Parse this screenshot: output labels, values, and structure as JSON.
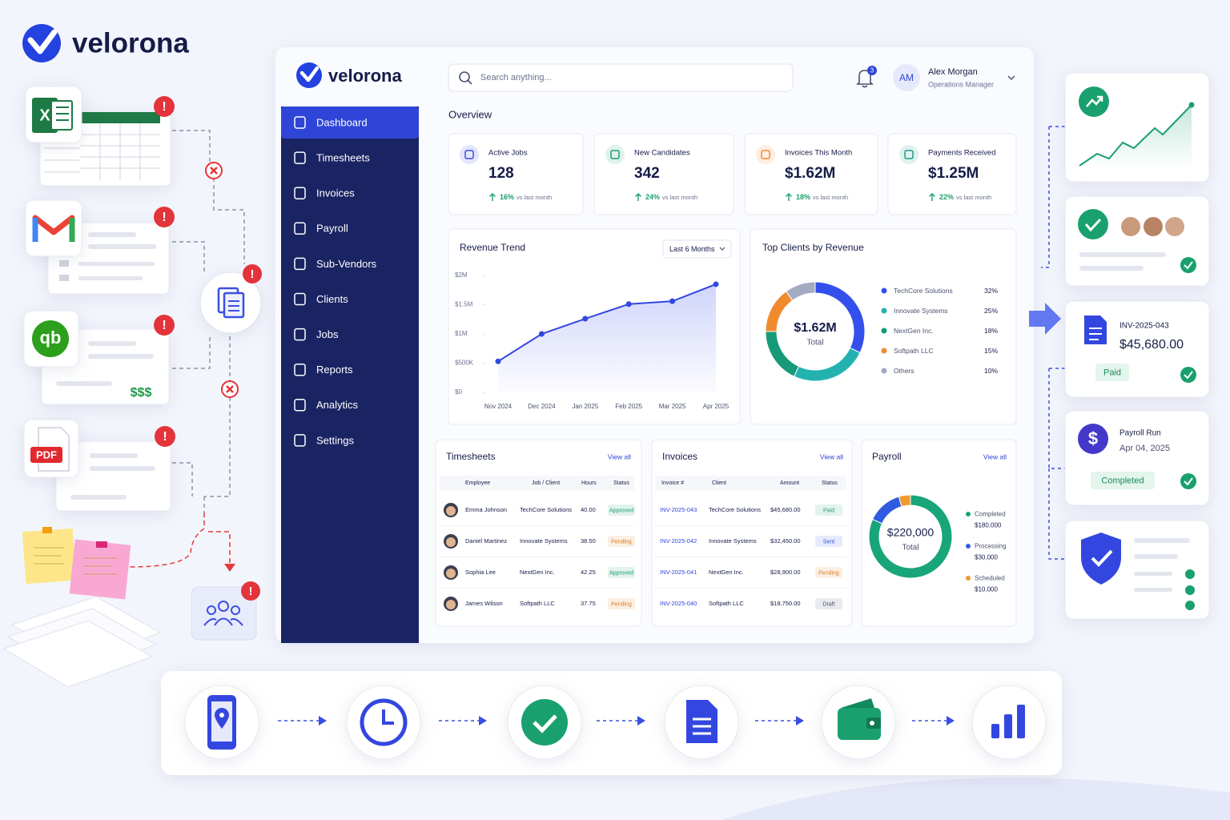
{
  "brand": "velorona",
  "sources": {
    "excel": "X",
    "quickbooks": "qb",
    "pdf": "PDF",
    "amount": "$$$"
  },
  "app": {
    "brand": "velorona",
    "nav": [
      "Dashboard",
      "Timesheets",
      "Invoices",
      "Payroll",
      "Sub-Vendors",
      "Clients",
      "Jobs",
      "Reports",
      "Analytics",
      "Settings"
    ],
    "search_placeholder": "Search anything...",
    "notifications": "3",
    "user": {
      "initials": "AM",
      "name": "Alex Morgan",
      "role": "Operations Manager"
    },
    "overview": "Overview",
    "kpis": [
      {
        "label": "Active Jobs",
        "value": "128",
        "change": "16%",
        "note": "vs last month"
      },
      {
        "label": "New Candidates",
        "value": "342",
        "change": "24%",
        "note": "vs last month"
      },
      {
        "label": "Invoices This Month",
        "value": "$1.62M",
        "change": "18%",
        "note": "vs last month"
      },
      {
        "label": "Payments Received",
        "value": "$1.25M",
        "change": "22%",
        "note": "vs last month"
      }
    ],
    "timesheets": {
      "title": "Timesheets",
      "link": "View all",
      "columns": [
        "Employee",
        "Job / Client",
        "Hours",
        "Status"
      ],
      "rows": [
        [
          "Emma Johnson",
          "TechCore Solutions",
          "40.00",
          "Approved"
        ],
        [
          "Daniel Martinez",
          "Innovate Systems",
          "38.50",
          "Pending"
        ],
        [
          "Sophia Lee",
          "NextGen Inc.",
          "42.25",
          "Approved"
        ],
        [
          "James Wilson",
          "Softpath LLC",
          "37.75",
          "Pending"
        ]
      ],
      "status_colors": [
        "#1a9e6a",
        "#e07b1a",
        "#1a9e6a",
        "#e07b1a"
      ]
    },
    "invoices": {
      "title": "Invoices",
      "link": "View all",
      "columns": [
        "Invoice #",
        "Client",
        "Amount",
        "Status"
      ],
      "rows": [
        [
          "INV-2025-043",
          "TechCore Solutions",
          "$45,680.00",
          "Paid"
        ],
        [
          "INV-2025-042",
          "Innovate Systems",
          "$32,450.00",
          "Sent"
        ],
        [
          "INV-2025-041",
          "NextGen Inc.",
          "$28,900.00",
          "Pending"
        ],
        [
          "INV-2025-040",
          "Softpath LLC",
          "$18,750.00",
          "Draft"
        ]
      ],
      "status_colors": [
        "#1a9e6a",
        "#2f4fe0",
        "#e07b1a",
        "#4a5270"
      ]
    }
  },
  "chart_data": [
    {
      "type": "line",
      "title": "Revenue Trend",
      "filter": "Last 6 Months",
      "categories": [
        "Nov 2024",
        "Dec 2024",
        "Jan 2025",
        "Feb 2025",
        "Mar 2025",
        "Apr 2025"
      ],
      "series": [
        {
          "color": "#3347e0",
          "values": [
            530000,
            1000000,
            1260000,
            1510000,
            1560000,
            1850000
          ]
        }
      ],
      "ylim": [
        0,
        2000000
      ],
      "yticks": [
        {
          "value": 0,
          "label": "$0"
        },
        {
          "value": 500000,
          "label": "$500K"
        },
        {
          "value": 1000000,
          "label": "$1M"
        },
        {
          "value": 1500000,
          "label": "$1.5M"
        },
        {
          "value": 2000000,
          "label": "$2M"
        }
      ]
    },
    {
      "type": "donut",
      "title": "Top Clients by Revenue",
      "center_value": "$1.62M",
      "center_label": "Total",
      "categories": [
        "TechCore Solutions",
        "Innovate Systems",
        "NextGen Inc.",
        "Softpath LLC",
        "Others"
      ],
      "values": [
        32,
        25,
        18,
        15,
        10
      ],
      "value_labels": [
        "32%",
        "25%",
        "18%",
        "15%",
        "10%"
      ],
      "colors": [
        "#3350ec",
        "#22b3b0",
        "#169a78",
        "#f08a2e",
        "#a3abc2"
      ]
    },
    {
      "type": "donut",
      "title": "Payroll",
      "link": "View all",
      "center_value": "$220,000",
      "center_label": "Total",
      "categories": [
        "Completed",
        "Processing",
        "Scheduled"
      ],
      "values": [
        180000,
        30000,
        10000
      ],
      "value_labels": [
        "$180,000",
        "$30,000",
        "$10,000"
      ],
      "colors": [
        "#18a57a",
        "#2f5be0",
        "#f29a2e"
      ]
    }
  ],
  "cards": {
    "invoice": {
      "number": "INV-2025-043",
      "amount": "$45,680.00",
      "status": "Paid"
    },
    "payroll_run": {
      "title": "Payroll Run",
      "date": "Apr 04, 2025",
      "status": "Completed"
    }
  }
}
